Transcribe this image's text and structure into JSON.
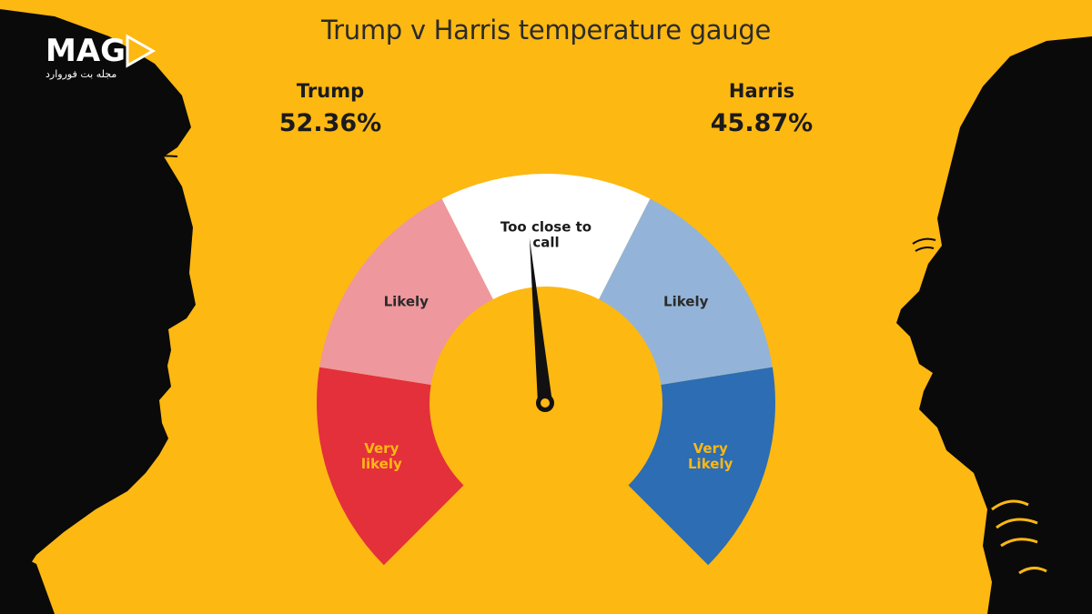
{
  "logo": {
    "wordmark": "MAG",
    "tagline": "مجله بت فوروارد"
  },
  "chart_data": {
    "type": "gauge",
    "title": "Trump v Harris temperature gauge",
    "candidates": [
      {
        "name": "Trump",
        "value_label": "52.36%",
        "value": 52.36
      },
      {
        "name": "Harris",
        "value_label": "45.87%",
        "value": 45.87
      }
    ],
    "segments": [
      {
        "label": "Very likely",
        "lines": [
          "Very",
          "likely"
        ],
        "color": "#E3303B",
        "text_color": "#FDB812"
      },
      {
        "label": "Likely",
        "lines": [
          "Likely"
        ],
        "color": "#EE979D",
        "text_color": "#2b2b2b"
      },
      {
        "label": "Too close to call",
        "lines": [
          "Too close to",
          "call"
        ],
        "color": "#FFFFFF",
        "text_color": "#1b1b1b"
      },
      {
        "label": "Likely",
        "lines": [
          "Likely"
        ],
        "color": "#93B4D8",
        "text_color": "#2b2b2b"
      },
      {
        "label": "Very Likely",
        "lines": [
          "Very",
          "Likely"
        ],
        "color": "#2C6DB3",
        "text_color": "#FDB812"
      }
    ],
    "needle_position_fraction": 0.48
  },
  "colors": {
    "background": "#FDB812",
    "silhouette": "#0a0a0a",
    "text": "#1b1b1b"
  }
}
